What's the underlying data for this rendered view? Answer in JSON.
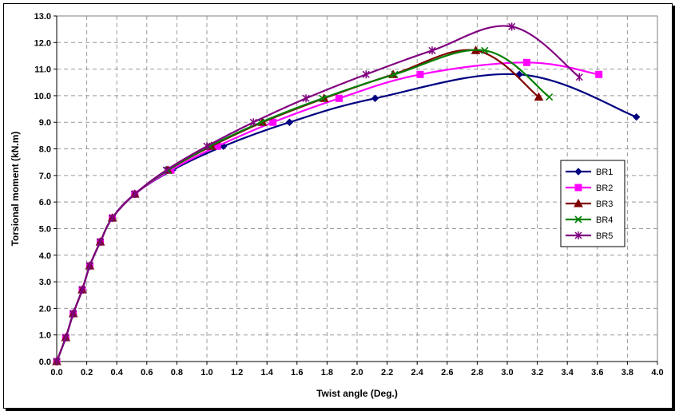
{
  "chart_data": {
    "type": "line",
    "title": "",
    "xlabel": "Twist angle (Deg.)",
    "ylabel": "Torsional moment (kN.m)",
    "xlim": [
      0,
      4.0
    ],
    "ylim": [
      0,
      13.0
    ],
    "x_ticks": [
      "0.0",
      "0.2",
      "0.4",
      "0.6",
      "0.8",
      "1.0",
      "1.2",
      "1.4",
      "1.6",
      "1.8",
      "2.0",
      "2.2",
      "2.4",
      "2.6",
      "2.8",
      "3.0",
      "3.2",
      "3.4",
      "3.6",
      "3.8",
      "4.0"
    ],
    "y_ticks": [
      "0.0",
      "1.0",
      "2.0",
      "3.0",
      "4.0",
      "5.0",
      "6.0",
      "7.0",
      "8.0",
      "9.0",
      "10.0",
      "11.0",
      "12.0",
      "13.0"
    ],
    "grid": true,
    "legend_position": "right",
    "series": [
      {
        "name": "BR1",
        "color": "#000080",
        "marker": "diamond",
        "points": [
          [
            0,
            0
          ],
          [
            0.06,
            0.9
          ],
          [
            0.11,
            1.8
          ],
          [
            0.17,
            2.7
          ],
          [
            0.22,
            3.6
          ],
          [
            0.29,
            4.5
          ],
          [
            0.37,
            5.4
          ],
          [
            0.52,
            6.3
          ],
          [
            0.77,
            7.2
          ],
          [
            1.11,
            8.1
          ],
          [
            1.55,
            9.0
          ],
          [
            2.12,
            9.9
          ],
          [
            3.08,
            10.8
          ],
          [
            3.86,
            9.2
          ]
        ]
      },
      {
        "name": "BR2",
        "color": "#ff00ff",
        "marker": "square",
        "points": [
          [
            0,
            0
          ],
          [
            0.06,
            0.9
          ],
          [
            0.11,
            1.8
          ],
          [
            0.17,
            2.7
          ],
          [
            0.22,
            3.6
          ],
          [
            0.29,
            4.5
          ],
          [
            0.37,
            5.4
          ],
          [
            0.52,
            6.3
          ],
          [
            0.76,
            7.2
          ],
          [
            1.07,
            8.1
          ],
          [
            1.44,
            9.0
          ],
          [
            1.88,
            9.9
          ],
          [
            2.42,
            10.8
          ],
          [
            3.13,
            11.25
          ],
          [
            3.61,
            10.8
          ]
        ]
      },
      {
        "name": "BR3",
        "color": "#800000",
        "marker": "triangle",
        "points": [
          [
            0,
            0
          ],
          [
            0.06,
            0.9
          ],
          [
            0.11,
            1.8
          ],
          [
            0.17,
            2.7
          ],
          [
            0.22,
            3.6
          ],
          [
            0.29,
            4.5
          ],
          [
            0.37,
            5.4
          ],
          [
            0.52,
            6.3
          ],
          [
            0.74,
            7.2
          ],
          [
            1.03,
            8.1
          ],
          [
            1.37,
            9.0
          ],
          [
            1.78,
            9.9
          ],
          [
            2.24,
            10.8
          ],
          [
            2.79,
            11.7
          ],
          [
            3.21,
            9.95
          ]
        ]
      },
      {
        "name": "BR4",
        "color": "#008000",
        "marker": "x",
        "points": [
          [
            0,
            0
          ],
          [
            0.06,
            0.9
          ],
          [
            0.11,
            1.8
          ],
          [
            0.17,
            2.7
          ],
          [
            0.22,
            3.6
          ],
          [
            0.29,
            4.5
          ],
          [
            0.37,
            5.4
          ],
          [
            0.52,
            6.3
          ],
          [
            0.74,
            7.2
          ],
          [
            1.02,
            8.1
          ],
          [
            1.36,
            9.0
          ],
          [
            1.77,
            9.9
          ],
          [
            2.25,
            10.8
          ],
          [
            2.85,
            11.7
          ],
          [
            3.28,
            9.95
          ]
        ]
      },
      {
        "name": "BR5",
        "color": "#800080",
        "marker": "star",
        "points": [
          [
            0,
            0
          ],
          [
            0.06,
            0.9
          ],
          [
            0.11,
            1.8
          ],
          [
            0.17,
            2.7
          ],
          [
            0.22,
            3.6
          ],
          [
            0.29,
            4.5
          ],
          [
            0.37,
            5.4
          ],
          [
            0.52,
            6.3
          ],
          [
            0.73,
            7.2
          ],
          [
            1.0,
            8.1
          ],
          [
            1.31,
            9.0
          ],
          [
            1.66,
            9.9
          ],
          [
            2.06,
            10.8
          ],
          [
            2.5,
            11.7
          ],
          [
            3.03,
            12.6
          ],
          [
            3.48,
            10.7
          ]
        ]
      }
    ]
  }
}
